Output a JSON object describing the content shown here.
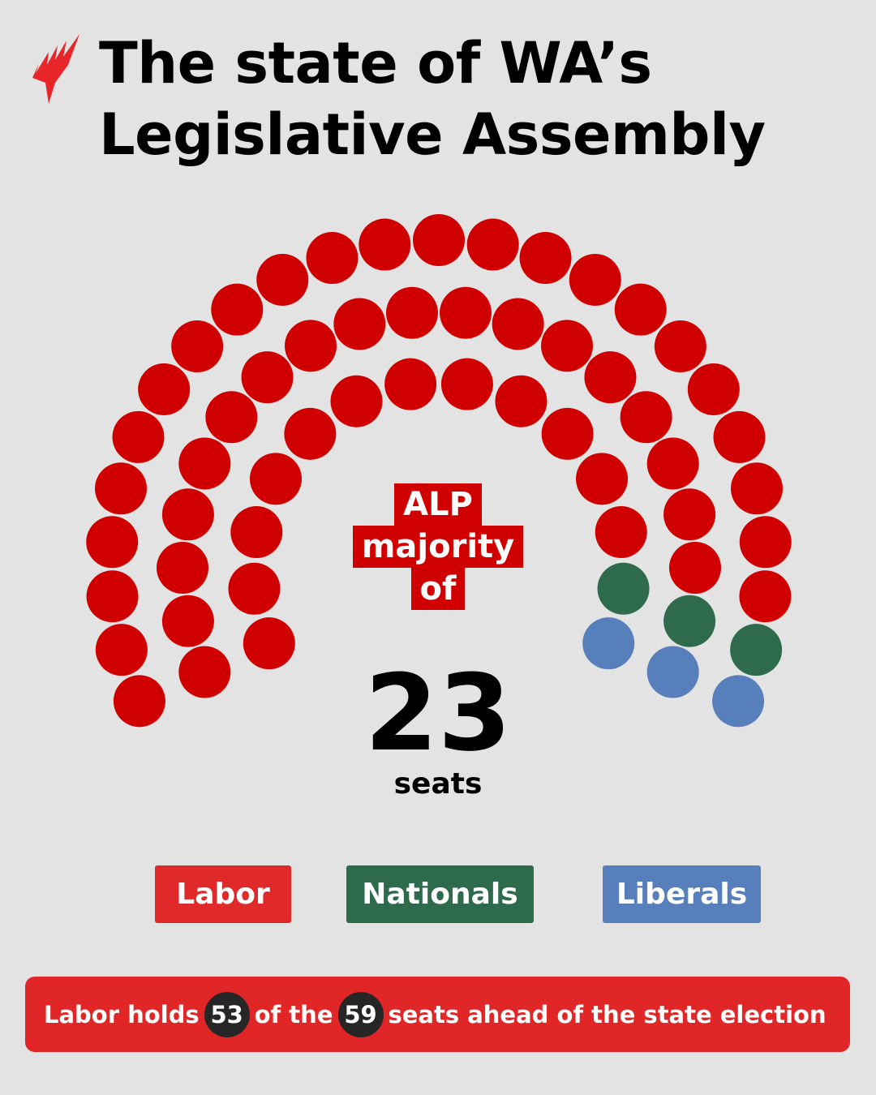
{
  "logo": {
    "name": "SBS",
    "icon": "sbs-mars-logo-icon",
    "color": "#e8262a"
  },
  "title": {
    "line1": "The state of WA’s",
    "line2": "Legislative Assembly"
  },
  "parties": [
    {
      "name": "Labor",
      "seats": 53,
      "color": "#d10000",
      "legend_color": "#e02a2a"
    },
    {
      "name": "Nationals",
      "seats": 3,
      "color": "#2e6b4c",
      "legend_color": "#2e6b4c"
    },
    {
      "name": "Liberals",
      "seats": 3,
      "color": "#577fbb",
      "legend_color": "#577fbb"
    }
  ],
  "rows": [
    {
      "Labor": 12,
      "Nationals": 1,
      "Liberals": 1
    },
    {
      "Labor": 18,
      "Nationals": 1,
      "Liberals": 1
    },
    {
      "Labor": 23,
      "Nationals": 1,
      "Liberals": 1
    }
  ],
  "majority": {
    "line1": "ALP",
    "line2": "majority",
    "line3": "of",
    "value": "23",
    "unit": "seats"
  },
  "summary": {
    "text1": "Labor holds",
    "held": "53",
    "text2": "of the",
    "total": "59",
    "text3": "seats ahead of the state election"
  }
}
